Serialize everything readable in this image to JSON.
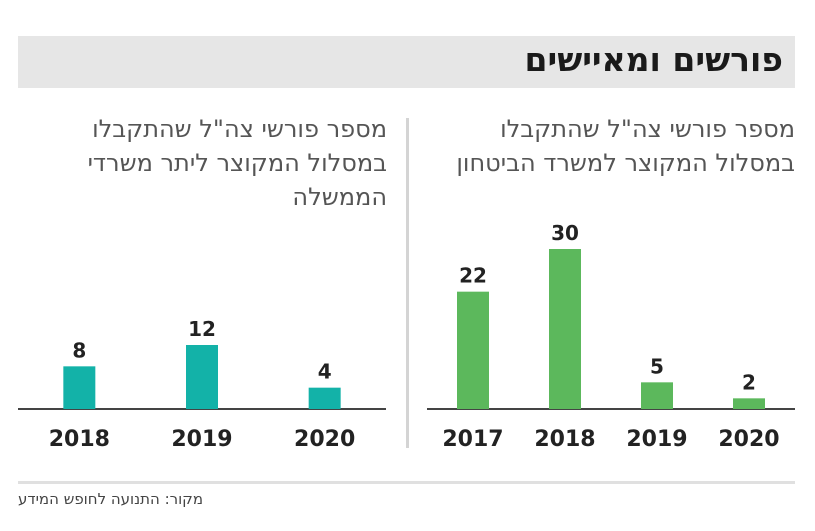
{
  "header": {
    "title": "פורשים ומאיישים"
  },
  "footer": {
    "source": "מקור: התנועה לחופש המידע"
  },
  "colors": {
    "defense_bar": "#5cb85c",
    "ministries_bar": "#13b2a8",
    "title_band": "#e6e6e6"
  },
  "chart_data": [
    {
      "type": "bar",
      "title": "מספר פורשי צה\"ל שהתקבלו במסלול המקוצר למשרד הביטחון",
      "categories": [
        "2017",
        "2018",
        "2019",
        "2020"
      ],
      "values": [
        22,
        30,
        5,
        2
      ],
      "ylim": [
        0,
        30
      ],
      "grid": false,
      "color": "#5cb85c"
    },
    {
      "type": "bar",
      "title": "מספר פורשי צה\"ל שהתקבלו במסלול המקוצר ליתר משרדי הממשלה",
      "categories": [
        "2018",
        "2019",
        "2020"
      ],
      "values": [
        8,
        12,
        4
      ],
      "ylim": [
        0,
        30
      ],
      "grid": false,
      "color": "#13b2a8"
    }
  ]
}
